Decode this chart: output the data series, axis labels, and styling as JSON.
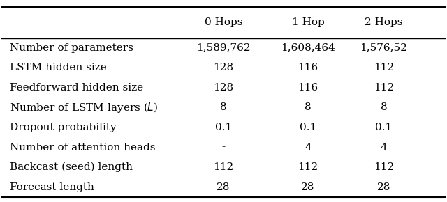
{
  "columns": [
    "",
    "0 Hops",
    "1 Hop",
    "2 Hops"
  ],
  "rows": [
    [
      "Number of parameters",
      "1,589,762",
      "1,608,464",
      "1,576,52"
    ],
    [
      "LSTM hidden size",
      "128",
      "116",
      "112"
    ],
    [
      "Feedforward hidden size",
      "128",
      "116",
      "112"
    ],
    [
      "Number of LSTM layers ($L$)",
      "8",
      "8",
      "8"
    ],
    [
      "Dropout probability",
      "0.1",
      "0.1",
      "0.1"
    ],
    [
      "Number of attention heads",
      "-",
      "4",
      "4"
    ],
    [
      "Backcast (seed) length",
      "112",
      "112",
      "112"
    ],
    [
      "Forecast length",
      "28",
      "28",
      "28"
    ]
  ],
  "background_color": "#ffffff",
  "text_color": "#000000",
  "font_size": 11,
  "header_font_size": 11
}
